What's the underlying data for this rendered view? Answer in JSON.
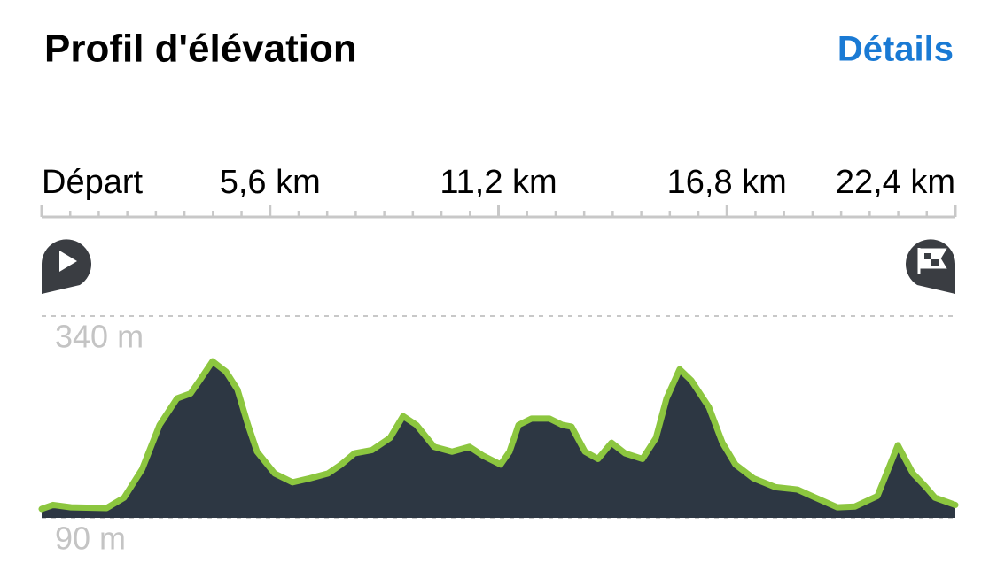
{
  "header": {
    "title": "Profil d'élévation",
    "link": "Détails"
  },
  "chart_data": {
    "type": "area",
    "x": [
      0,
      0.28,
      0.72,
      1.59,
      2.02,
      2.46,
      2.89,
      3.32,
      3.65,
      3.87,
      4.19,
      4.52,
      4.8,
      5.06,
      5.28,
      5.71,
      6.15,
      6.58,
      7.02,
      7.34,
      7.67,
      8.1,
      8.54,
      8.86,
      9.19,
      9.62,
      10.06,
      10.49,
      10.82,
      11.25,
      11.47,
      11.69,
      12.01,
      12.45,
      12.77,
      12.99,
      13.32,
      13.64,
      13.97,
      14.3,
      14.73,
      15.06,
      15.32,
      15.64,
      15.93,
      16.36,
      16.69,
      17.01,
      17.45,
      17.99,
      18.53,
      18.97,
      19.51,
      19.94,
      20.49,
      20.99,
      21.36,
      21.68,
      21.9,
      22.4
    ],
    "values": [
      101,
      106,
      103,
      102,
      115,
      150,
      205,
      238,
      244,
      260,
      284,
      271,
      249,
      205,
      172,
      145,
      134,
      139,
      145,
      156,
      170,
      174,
      189,
      216,
      205,
      178,
      172,
      178,
      167,
      156,
      172,
      205,
      213,
      213,
      205,
      203,
      172,
      163,
      183,
      170,
      163,
      189,
      238,
      274,
      260,
      227,
      183,
      156,
      139,
      128,
      125,
      115,
      103,
      104,
      117,
      180,
      145,
      128,
      115,
      106
    ],
    "color": "#8cc63f",
    "fill_color": "#2d3743",
    "xlim": [
      0,
      22.4
    ],
    "xticks": [
      {
        "value": 0,
        "label": "Départ"
      },
      {
        "value": 5.6,
        "label": "5,6 km"
      },
      {
        "value": 11.2,
        "label": "11,2 km"
      },
      {
        "value": 16.8,
        "label": "16,8 km"
      },
      {
        "value": 22.4,
        "label": "22,4 km"
      }
    ],
    "xminorticks": [
      0.7,
      1.4,
      2.1,
      2.8,
      3.5,
      4.2,
      4.9,
      6.3,
      7.0,
      7.7,
      8.4,
      9.1,
      9.8,
      10.5,
      11.9,
      12.6,
      13.3,
      14.0,
      14.7,
      15.4,
      16.1,
      17.5,
      18.2,
      18.9,
      19.6,
      20.3,
      21.0,
      21.7
    ],
    "ylim": [
      90,
      340
    ],
    "yticks": [
      {
        "value": 90,
        "label": "90 m"
      },
      {
        "value": 340,
        "label": "340 m"
      }
    ],
    "grid": true
  }
}
